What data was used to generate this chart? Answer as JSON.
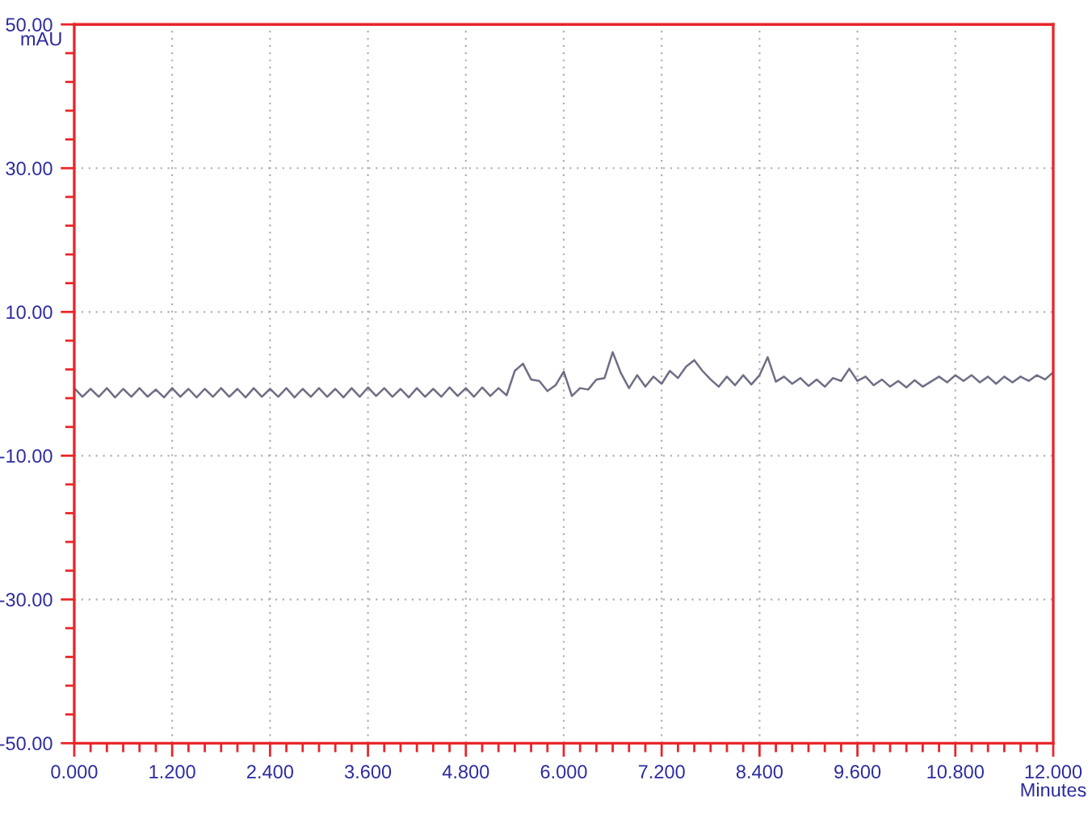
{
  "chart_data": {
    "type": "line",
    "xlabel": "Minutes",
    "ylabel": "mAU",
    "xlim": [
      0,
      12
    ],
    "ylim": [
      -50,
      50
    ],
    "xticks": [
      {
        "value": 0,
        "label": "0.000"
      },
      {
        "value": 1.2,
        "label": "1.200"
      },
      {
        "value": 2.4,
        "label": "2.400"
      },
      {
        "value": 3.6,
        "label": "3.600"
      },
      {
        "value": 4.8,
        "label": "4.800"
      },
      {
        "value": 6.0,
        "label": "6.000"
      },
      {
        "value": 7.2,
        "label": "7.200"
      },
      {
        "value": 8.4,
        "label": "8.400"
      },
      {
        "value": 9.6,
        "label": "9.600"
      },
      {
        "value": 10.8,
        "label": "10.800"
      },
      {
        "value": 12,
        "label": "12.000"
      },
      {
        "value": 0.2,
        "label": null
      },
      {
        "value": 0.4,
        "label": null
      },
      {
        "value": 0.6,
        "label": null
      },
      {
        "value": 0.8,
        "label": null
      },
      {
        "value": 1.0,
        "label": null
      },
      {
        "value": 1.4,
        "label": null
      },
      {
        "value": 1.6,
        "label": null
      },
      {
        "value": 1.8,
        "label": null
      },
      {
        "value": 2.0,
        "label": null
      },
      {
        "value": 2.2,
        "label": null
      },
      {
        "value": 2.6,
        "label": null
      },
      {
        "value": 2.8,
        "label": null
      },
      {
        "value": 3.0,
        "label": null
      },
      {
        "value": 3.2,
        "label": null
      },
      {
        "value": 3.4,
        "label": null
      },
      {
        "value": 3.8,
        "label": null
      },
      {
        "value": 4.0,
        "label": null
      },
      {
        "value": 4.2,
        "label": null
      },
      {
        "value": 4.4,
        "label": null
      },
      {
        "value": 4.6,
        "label": null
      },
      {
        "value": 5.0,
        "label": null
      },
      {
        "value": 5.2,
        "label": null
      },
      {
        "value": 5.4,
        "label": null
      },
      {
        "value": 5.6,
        "label": null
      },
      {
        "value": 5.8,
        "label": null
      },
      {
        "value": 6.2,
        "label": null
      },
      {
        "value": 6.4,
        "label": null
      },
      {
        "value": 6.6,
        "label": null
      },
      {
        "value": 6.8,
        "label": null
      },
      {
        "value": 7.0,
        "label": null
      },
      {
        "value": 7.4,
        "label": null
      },
      {
        "value": 7.6,
        "label": null
      },
      {
        "value": 7.8,
        "label": null
      },
      {
        "value": 8.0,
        "label": null
      },
      {
        "value": 8.2,
        "label": null
      },
      {
        "value": 8.6,
        "label": null
      },
      {
        "value": 8.8,
        "label": null
      },
      {
        "value": 9.0,
        "label": null
      },
      {
        "value": 9.2,
        "label": null
      },
      {
        "value": 9.4,
        "label": null
      },
      {
        "value": 9.8,
        "label": null
      },
      {
        "value": 10.0,
        "label": null
      },
      {
        "value": 10.2,
        "label": null
      },
      {
        "value": 10.4,
        "label": null
      },
      {
        "value": 10.6,
        "label": null
      },
      {
        "value": 11.0,
        "label": null
      },
      {
        "value": 11.2,
        "label": null
      },
      {
        "value": 11.4,
        "label": null
      },
      {
        "value": 11.6,
        "label": null
      },
      {
        "value": 11.8,
        "label": null
      }
    ],
    "yticks": [
      {
        "value": 50,
        "label": "50.00"
      },
      {
        "value": 30,
        "label": "30.00"
      },
      {
        "value": 10,
        "label": "10.00"
      },
      {
        "value": -10,
        "label": "-10.00"
      },
      {
        "value": -30,
        "label": "-30.00"
      },
      {
        "value": -50,
        "label": "-50.00"
      },
      {
        "value": -46,
        "label": null
      },
      {
        "value": -42,
        "label": null
      },
      {
        "value": -38,
        "label": null
      },
      {
        "value": -34,
        "label": null
      },
      {
        "value": -26,
        "label": null
      },
      {
        "value": -22,
        "label": null
      },
      {
        "value": -18,
        "label": null
      },
      {
        "value": -14,
        "label": null
      },
      {
        "value": -6,
        "label": null
      },
      {
        "value": -2,
        "label": null
      },
      {
        "value": 2,
        "label": null
      },
      {
        "value": 6,
        "label": null
      },
      {
        "value": 14,
        "label": null
      },
      {
        "value": 18,
        "label": null
      },
      {
        "value": 22,
        "label": null
      },
      {
        "value": 26,
        "label": null
      },
      {
        "value": 34,
        "label": null
      },
      {
        "value": 38,
        "label": null
      },
      {
        "value": 42,
        "label": null
      },
      {
        "value": 46,
        "label": null
      }
    ],
    "grid": true,
    "series": [
      {
        "color": "#6e6e85",
        "x": [
          0.0,
          0.1,
          0.2,
          0.3,
          0.4,
          0.5,
          0.6,
          0.7,
          0.8,
          0.9,
          1.0,
          1.1,
          1.2,
          1.3,
          1.4,
          1.5,
          1.6,
          1.7,
          1.8,
          1.9,
          2.0,
          2.1,
          2.2,
          2.3,
          2.4,
          2.5,
          2.6,
          2.7,
          2.8,
          2.9,
          3.0,
          3.1,
          3.2,
          3.3,
          3.4,
          3.5,
          3.6,
          3.7,
          3.8,
          3.9,
          4.0,
          4.1,
          4.2,
          4.3,
          4.4,
          4.5,
          4.6,
          4.7,
          4.8,
          4.9,
          5.0,
          5.1,
          5.2,
          5.3,
          5.4,
          5.5,
          5.6,
          5.7,
          5.8,
          5.9,
          6.0,
          6.1,
          6.2,
          6.3,
          6.4,
          6.5,
          6.6,
          6.7,
          6.8,
          6.9,
          7.0,
          7.1,
          7.2,
          7.3,
          7.4,
          7.5,
          7.6,
          7.7,
          7.8,
          7.9,
          8.0,
          8.1,
          8.2,
          8.3,
          8.4,
          8.5,
          8.6,
          8.7,
          8.8,
          8.9,
          9.0,
          9.1,
          9.2,
          9.3,
          9.4,
          9.5,
          9.6,
          9.7,
          9.8,
          9.9,
          10.0,
          10.1,
          10.2,
          10.3,
          10.4,
          10.5,
          10.6,
          10.7,
          10.8,
          10.9,
          11.0,
          11.1,
          11.2,
          11.3,
          11.4,
          11.5,
          11.6,
          11.7,
          11.8,
          11.9,
          12.0
        ],
        "values": [
          -0.6,
          -1.8,
          -0.7,
          -1.8,
          -0.6,
          -1.9,
          -0.7,
          -1.8,
          -0.6,
          -1.8,
          -0.8,
          -1.9,
          -0.6,
          -1.8,
          -0.7,
          -1.9,
          -0.7,
          -1.8,
          -0.6,
          -1.8,
          -0.7,
          -1.9,
          -0.6,
          -1.8,
          -0.7,
          -1.8,
          -0.6,
          -1.9,
          -0.7,
          -1.8,
          -0.6,
          -1.8,
          -0.7,
          -1.9,
          -0.6,
          -1.8,
          -0.5,
          -1.7,
          -0.6,
          -1.8,
          -0.7,
          -1.9,
          -0.6,
          -1.8,
          -0.7,
          -1.8,
          -0.5,
          -1.7,
          -0.6,
          -1.8,
          -0.5,
          -1.7,
          -0.6,
          -1.6,
          1.8,
          2.8,
          0.6,
          0.4,
          -1.0,
          -0.2,
          1.7,
          -1.7,
          -0.6,
          -0.8,
          0.6,
          0.8,
          4.4,
          1.5,
          -0.6,
          1.2,
          -0.4,
          1.0,
          0.0,
          1.8,
          0.8,
          2.4,
          3.3,
          1.8,
          0.6,
          -0.4,
          1.0,
          -0.2,
          1.2,
          -0.1,
          1.2,
          3.7,
          0.3,
          1.0,
          0.0,
          0.8,
          -0.3,
          0.6,
          -0.4,
          0.8,
          0.4,
          2.1,
          0.4,
          1.0,
          -0.2,
          0.6,
          -0.4,
          0.4,
          -0.5,
          0.5,
          -0.4,
          0.3,
          1.0,
          0.2,
          1.2,
          0.4,
          1.2,
          0.2,
          1.0,
          0.0,
          1.0,
          0.2,
          1.0,
          0.4,
          1.2,
          0.6,
          1.6
        ]
      }
    ]
  }
}
